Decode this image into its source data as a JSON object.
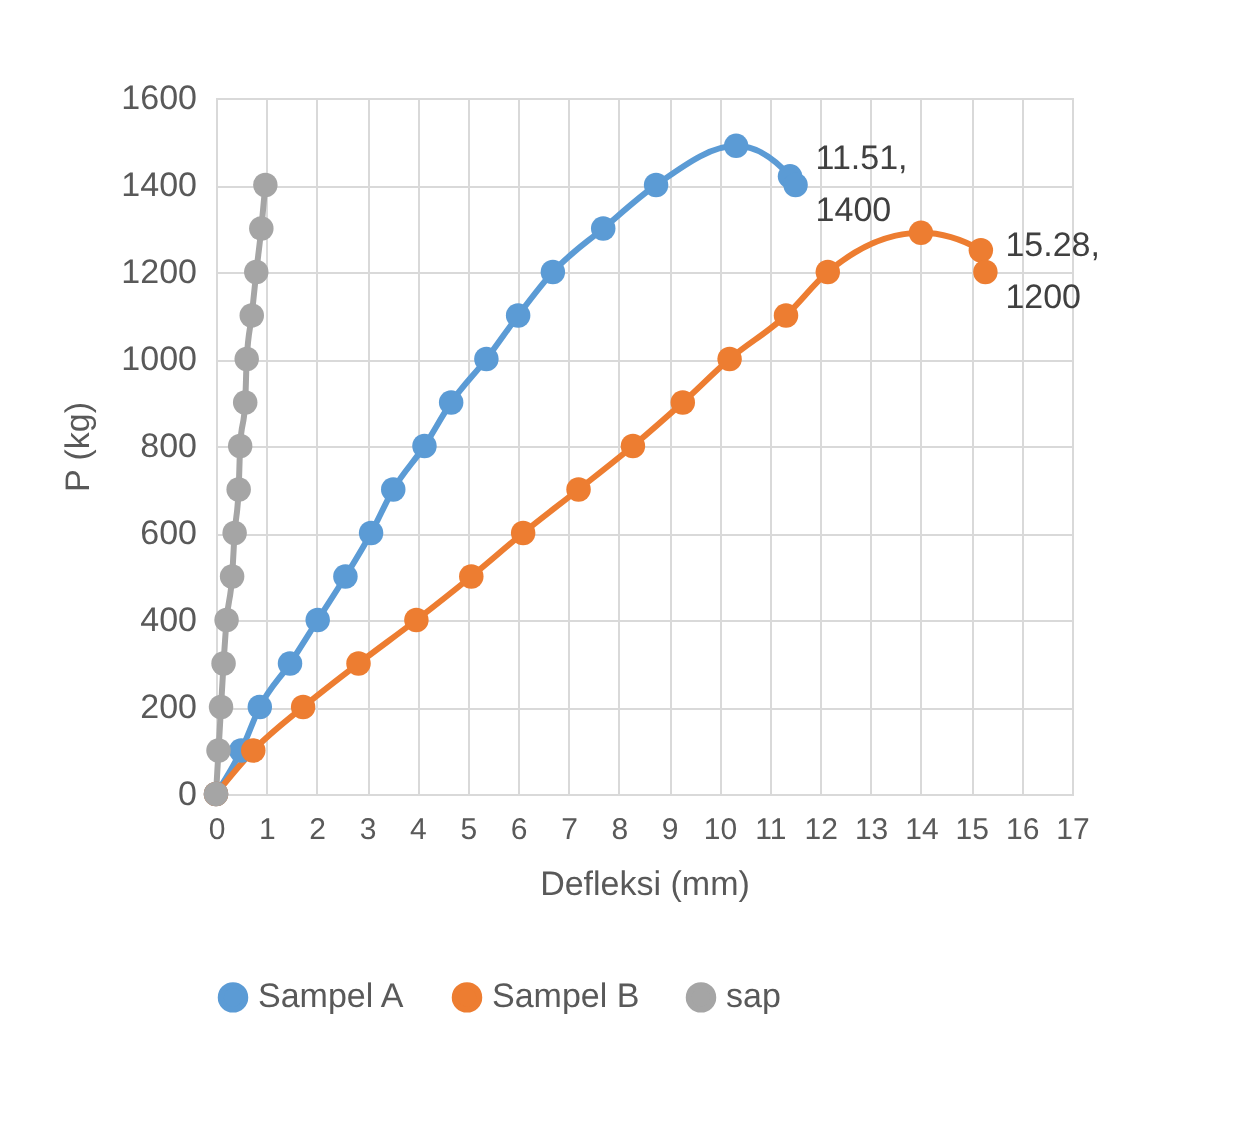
{
  "chart_data": {
    "type": "line",
    "xlabel": "Defleksi (mm)",
    "ylabel": "P (kg)",
    "xlim": [
      0,
      17
    ],
    "xticks": [
      0,
      1,
      2,
      3,
      4,
      5,
      6,
      7,
      8,
      9,
      10,
      11,
      12,
      13,
      14,
      15,
      16,
      17
    ],
    "ylim": [
      0,
      1600
    ],
    "yticks": [
      0,
      200,
      400,
      600,
      800,
      1000,
      1200,
      1400,
      1600
    ],
    "grid": true,
    "legend": "bottom",
    "marker": "circle",
    "line_style": "solid",
    "series": [
      {
        "name": "Sampel A",
        "color": "#5b9bd5",
        "x": [
          0,
          0.5,
          0.87,
          1.47,
          2.02,
          2.57,
          3.08,
          3.52,
          4.14,
          4.67,
          5.37,
          6.0,
          6.69,
          7.69,
          8.74,
          10.33,
          11.4,
          11.51
        ],
        "values": [
          0,
          100,
          200,
          300,
          400,
          500,
          600,
          700,
          800,
          900,
          1000,
          1100,
          1200,
          1300,
          1400,
          1490,
          1420,
          1400
        ]
      },
      {
        "name": "Sampel B",
        "color": "#ed7d31",
        "x": [
          0,
          0.74,
          1.73,
          2.83,
          3.98,
          5.07,
          6.1,
          7.2,
          8.28,
          9.27,
          10.2,
          11.32,
          12.15,
          14.0,
          15.19,
          15.28
        ],
        "values": [
          0,
          100,
          200,
          300,
          400,
          500,
          600,
          700,
          800,
          900,
          1000,
          1100,
          1200,
          1290,
          1250,
          1200
        ]
      },
      {
        "name": "sap",
        "color": "#a5a5a5",
        "x": [
          0,
          0.05,
          0.1,
          0.15,
          0.21,
          0.32,
          0.37,
          0.45,
          0.48,
          0.58,
          0.61,
          0.71,
          0.8,
          0.9,
          0.98
        ],
        "values": [
          0,
          100,
          200,
          300,
          400,
          500,
          600,
          700,
          800,
          900,
          1000,
          1100,
          1200,
          1300,
          1400
        ]
      }
    ],
    "annotations": [
      {
        "text": "11.51, 1400",
        "x": 11.51,
        "y": 1400
      },
      {
        "text": "15.28, 1200",
        "x": 15.28,
        "y": 1200
      }
    ]
  }
}
